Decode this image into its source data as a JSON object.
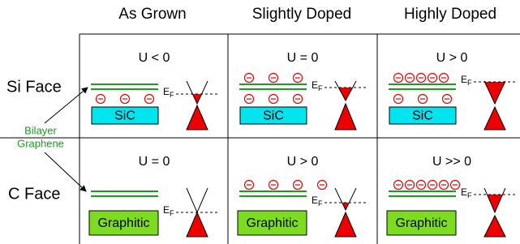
{
  "headers": {
    "columns": [
      "As Grown",
      "Slightly Doped",
      "Highly Doped"
    ]
  },
  "annotation": {
    "lines": [
      "Bilayer",
      "Graphene"
    ]
  },
  "fermi": {
    "main": "E",
    "sub": "F"
  },
  "rows": [
    {
      "label": "Si Face",
      "cells": [
        {
          "u": "U < 0",
          "substrate": "SiC"
        },
        {
          "u": "U = 0",
          "substrate": "SiC"
        },
        {
          "u": "U > 0",
          "substrate": "SiC"
        }
      ]
    },
    {
      "label": "C Face",
      "cells": [
        {
          "u": "U = 0",
          "substrate": "Graphitic"
        },
        {
          "u": "U > 0",
          "substrate": "Graphitic"
        },
        {
          "u": "U >> 0",
          "substrate": "Graphitic"
        }
      ]
    }
  ]
}
